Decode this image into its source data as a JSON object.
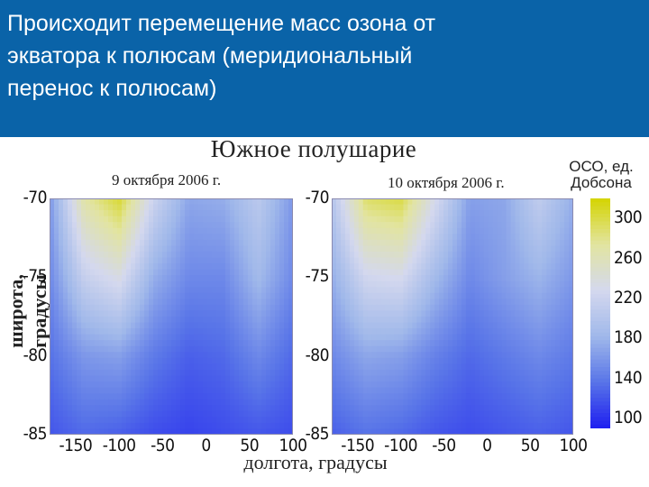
{
  "slide": {
    "title": "Происходит перемещение масс озона от\nэкватора к полюсам (меридиональный\nперенос к полюсам)"
  },
  "chart_data": {
    "type": "heatmap",
    "title": "Южное полушарие",
    "xlabel": "долгота, градусы",
    "ylabel": "широта, градусы",
    "xlim": [
      -180,
      100
    ],
    "ylim": [
      -85,
      -70
    ],
    "x_ticks": [
      -150,
      -100,
      -50,
      0,
      50,
      100
    ],
    "y_ticks": [
      -70,
      -75,
      -80,
      -85
    ],
    "colorbar": {
      "title": "ОСО, ед. Добсона",
      "ticks": [
        300,
        260,
        220,
        180,
        140,
        100
      ],
      "range": [
        90,
        320
      ],
      "colors": [
        "#1e1ef0",
        "#5874e8",
        "#a0b8ea",
        "#d4d8ee",
        "#e2e4a0",
        "#d4d400"
      ]
    },
    "panels": [
      {
        "date": "9 октября 2006 г.",
        "grid_x": [
          -180,
          -140,
          -100,
          -60,
          -20,
          20,
          60,
          100
        ],
        "grid_y": [
          -70,
          -75,
          -80,
          -85
        ],
        "values": [
          [
            160,
            270,
            305,
            220,
            170,
            175,
            205,
            160
          ],
          [
            150,
            215,
            235,
            175,
            150,
            150,
            185,
            150
          ],
          [
            135,
            160,
            165,
            140,
            125,
            130,
            150,
            130
          ],
          [
            120,
            130,
            125,
            115,
            110,
            115,
            120,
            115
          ]
        ]
      },
      {
        "date": "10 октября 2006 г.",
        "grid_x": [
          -180,
          -140,
          -100,
          -60,
          -20,
          20,
          60,
          100
        ],
        "grid_y": [
          -70,
          -75,
          -80,
          -85
        ],
        "values": [
          [
            200,
            290,
            300,
            230,
            165,
            170,
            210,
            175
          ],
          [
            175,
            225,
            230,
            185,
            150,
            165,
            180,
            160
          ],
          [
            150,
            170,
            165,
            145,
            130,
            140,
            150,
            140
          ],
          [
            125,
            135,
            130,
            120,
            115,
            120,
            125,
            120
          ]
        ]
      }
    ]
  }
}
